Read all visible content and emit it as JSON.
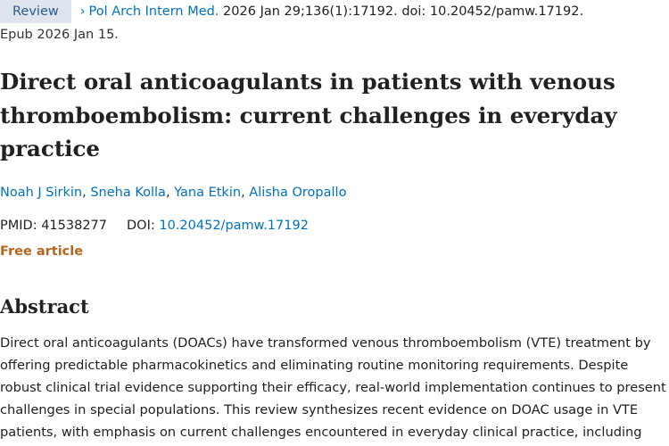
{
  "citation": {
    "badge": "Review",
    "journal": "Pol Arch Intern Med.",
    "details": " 2026 Jan 29;136(1):17192. doi: 10.20452/pamw.17192.",
    "epub": "Epub 2026 Jan 15."
  },
  "title": "Direct oral anticoagulants in patients with venous thromboembolism: current challenges in everyday practice",
  "authors": [
    "Noah J Sirkin",
    "Sneha Kolla",
    "Yana Etkin",
    "Alisha Oropallo"
  ],
  "ids": {
    "pmid_label": "PMID:",
    "pmid": "41538277",
    "doi_label": "DOI:",
    "doi": "10.20452/pamw.17192"
  },
  "free_label": "Free article",
  "abstract": {
    "heading": "Abstract",
    "text": "Direct oral anticoagulants (DOACs) have transformed venous thromboembolism (VTE) treatment by offering predictable pharmacokinetics and eliminating routine monitoring requirements. Despite robust clinical trial evidence supporting their efficacy, real-world implementation continues to present challenges in special populations. This review synthesizes recent evidence on DOAC usage in VTE patients, with emphasis on current challenges encountered in everyday clinical practice, including"
  }
}
